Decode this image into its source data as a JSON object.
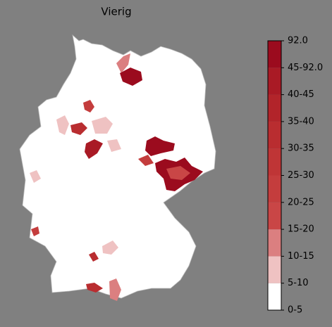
{
  "title": "Vierig",
  "colorbar": {
    "labels": [
      "0-5",
      "5-10",
      "10-15",
      "15-20",
      "20-25",
      "25-30",
      "30-35",
      "35-40",
      "40-45",
      "45-92.0",
      "92.0"
    ],
    "colors": [
      "#ffffff",
      "#efc2c2",
      "#db7f80",
      "#c94646",
      "#c43d3d",
      "#bf3536",
      "#b92d30",
      "#b2242a",
      "#a91a25",
      "#9b0b1e"
    ]
  }
}
